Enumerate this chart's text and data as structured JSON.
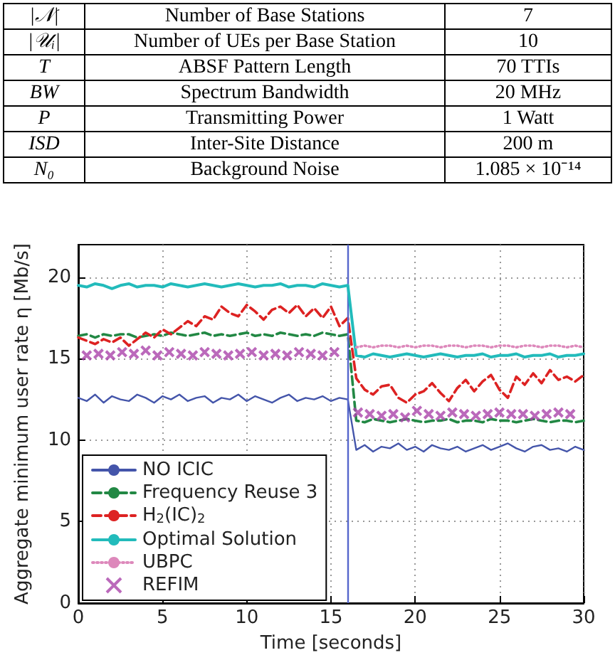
{
  "chart_data": [
    {
      "type": "other",
      "annotations": [
        "|𝒩|",
        "Number of Base Stations",
        "7",
        "|𝒰ᵢ|",
        "Number of UEs per Base Station",
        "10",
        "T",
        "ABSF Pattern Length",
        "70 TTIs",
        "BW",
        "Spectrum Bandwidth",
        "20 MHz",
        "P",
        "Transmitting Power",
        "1 Watt",
        "ISD",
        "Inter-Site Distance",
        "200 m",
        "N₀",
        "Background Noise",
        "1.085 × 10⁻¹⁴"
      ]
    },
    {
      "type": "line",
      "xlabel": "Time [seconds]",
      "ylabel": "Aggregate minimum user rate η [Mb/s]",
      "x": [
        0,
        0.5,
        1,
        1.5,
        2,
        2.5,
        3,
        3.5,
        4,
        4.5,
        5,
        5.5,
        6,
        6.5,
        7,
        7.5,
        8,
        8.5,
        9,
        9.5,
        10,
        10.5,
        11,
        11.5,
        12,
        12.5,
        13,
        13.5,
        14,
        14.5,
        15,
        15.5,
        16,
        16.5,
        17,
        17.5,
        18,
        18.5,
        19,
        19.5,
        20,
        20.5,
        21,
        21.5,
        22,
        22.5,
        23,
        23.5,
        24,
        24.5,
        25,
        25.5,
        26,
        26.5,
        27,
        27.5,
        28,
        28.5,
        29,
        29.5,
        30
      ],
      "series": [
        {
          "name": "NO ICIC",
          "color": "#4455aa",
          "line_style": "solid",
          "values": [
            12.6,
            12.4,
            12.8,
            12.3,
            12.7,
            12.5,
            12.4,
            12.8,
            12.6,
            12.3,
            12.7,
            12.5,
            12.8,
            12.4,
            12.6,
            12.7,
            12.3,
            12.6,
            12.5,
            12.8,
            12.4,
            12.7,
            12.5,
            12.3,
            12.6,
            12.8,
            12.4,
            12.6,
            12.5,
            12.7,
            12.4,
            12.6,
            12.5,
            9.4,
            9.7,
            9.3,
            9.6,
            9.5,
            9.8,
            9.4,
            9.6,
            9.3,
            9.7,
            9.5,
            9.4,
            9.6,
            9.3,
            9.5,
            9.7,
            9.4,
            9.6,
            9.8,
            9.5,
            9.3,
            9.6,
            9.7,
            9.4,
            9.5,
            9.3,
            9.6,
            9.4
          ]
        },
        {
          "name": "Frequency Reuse 3",
          "color": "#228844",
          "line_style": "dashed",
          "values": [
            16.4,
            16.5,
            16.3,
            16.5,
            16.4,
            16.5,
            16.5,
            16.3,
            16.4,
            16.5,
            16.4,
            16.6,
            16.5,
            16.4,
            16.5,
            16.6,
            16.4,
            16.5,
            16.4,
            16.5,
            16.6,
            16.4,
            16.5,
            16.4,
            16.6,
            16.5,
            16.4,
            16.5,
            16.4,
            16.6,
            16.5,
            16.4,
            16.5,
            11.2,
            11.1,
            11.3,
            11.2,
            11.1,
            11.2,
            11.3,
            11.2,
            11.1,
            11.2,
            11.2,
            11.3,
            11.1,
            11.2,
            11.2,
            11.1,
            11.3,
            11.2,
            11.2,
            11.1,
            11.2,
            11.3,
            11.2,
            11.1,
            11.2,
            11.2,
            11.1,
            11.2
          ]
        },
        {
          "name": "H$_{2}$(IC)$_{2}$",
          "color": "#dd2222",
          "line_style": "dashed",
          "values": [
            16.3,
            16.1,
            15.9,
            16.2,
            16.0,
            16.3,
            15.8,
            16.2,
            16.6,
            16.3,
            16.8,
            16.5,
            16.9,
            17.3,
            17.0,
            17.6,
            17.4,
            18.2,
            17.8,
            17.6,
            18.3,
            17.9,
            17.4,
            18.0,
            18.2,
            17.8,
            18.3,
            17.6,
            18.1,
            17.5,
            18.2,
            17.0,
            17.5,
            13.8,
            13.1,
            12.8,
            13.3,
            13.4,
            12.6,
            12.3,
            12.8,
            13.0,
            13.5,
            12.9,
            12.4,
            13.2,
            13.7,
            13.0,
            13.6,
            14.0,
            13.1,
            12.6,
            13.9,
            13.4,
            14.1,
            13.5,
            14.3,
            13.7,
            13.9,
            13.6,
            14.0
          ]
        },
        {
          "name": "Optimal Solution",
          "color": "#22bbbb",
          "line_style": "solid",
          "values": [
            19.5,
            19.4,
            19.6,
            19.5,
            19.3,
            19.5,
            19.6,
            19.4,
            19.5,
            19.5,
            19.4,
            19.6,
            19.5,
            19.4,
            19.5,
            19.6,
            19.5,
            19.4,
            19.5,
            19.6,
            19.5,
            19.4,
            19.5,
            19.5,
            19.6,
            19.4,
            19.5,
            19.5,
            19.4,
            19.6,
            19.5,
            19.4,
            19.5,
            15.2,
            15.1,
            15.3,
            15.2,
            15.1,
            15.2,
            15.3,
            15.2,
            15.1,
            15.2,
            15.3,
            15.2,
            15.1,
            15.2,
            15.2,
            15.3,
            15.1,
            15.2,
            15.2,
            15.3,
            15.1,
            15.2,
            15.2,
            15.3,
            15.1,
            15.2,
            15.2,
            15.3
          ]
        },
        {
          "name": "UBPC",
          "color": "#dd88bb",
          "line_style": "dotted",
          "values": [
            null,
            null,
            null,
            null,
            null,
            null,
            null,
            null,
            null,
            null,
            null,
            null,
            null,
            null,
            null,
            null,
            null,
            null,
            null,
            null,
            null,
            null,
            null,
            null,
            null,
            null,
            null,
            null,
            null,
            null,
            null,
            null,
            null,
            15.7,
            15.8,
            15.7,
            15.8,
            15.8,
            15.7,
            15.8,
            15.7,
            15.8,
            15.8,
            15.7,
            15.8,
            15.8,
            15.7,
            15.8,
            15.8,
            15.7,
            15.8,
            15.8,
            15.7,
            15.8,
            15.8,
            15.7,
            15.8,
            15.8,
            15.7,
            15.8,
            15.7
          ]
        },
        {
          "name": "REFIM",
          "type": "scatter",
          "marker": "cross",
          "color": "#aa44aa",
          "x": [
            0.5,
            1.2,
            1.9,
            2.6,
            3.3,
            4.0,
            4.7,
            5.4,
            6.1,
            6.8,
            7.5,
            8.2,
            8.9,
            9.6,
            10.3,
            11.0,
            11.7,
            12.4,
            13.1,
            13.8,
            14.5,
            15.2,
            16.6,
            17.3,
            18.0,
            18.7,
            19.4,
            20.1,
            20.8,
            21.5,
            22.2,
            22.9,
            23.6,
            24.3,
            25.0,
            25.7,
            26.4,
            27.1,
            27.8,
            28.5,
            29.2
          ],
          "values": [
            15.2,
            15.3,
            15.2,
            15.4,
            15.3,
            15.5,
            15.2,
            15.4,
            15.3,
            15.2,
            15.4,
            15.3,
            15.2,
            15.3,
            15.4,
            15.2,
            15.3,
            15.2,
            15.4,
            15.3,
            15.2,
            15.4,
            11.7,
            11.6,
            11.5,
            11.6,
            11.4,
            11.8,
            11.6,
            11.5,
            11.7,
            11.6,
            11.5,
            11.6,
            11.7,
            11.6,
            11.6,
            11.5,
            11.6,
            11.7,
            11.6
          ]
        }
      ],
      "xlim": [
        0,
        30
      ],
      "xticks": [
        0,
        5,
        10,
        15,
        20,
        25,
        30
      ],
      "ylim": [
        0,
        22
      ],
      "yticks": [
        0,
        5,
        10,
        15,
        20
      ],
      "ref_lines": [
        {
          "axis": "x",
          "value": 16,
          "color": "#5566cc",
          "line_style": "solid"
        }
      ],
      "grid": true,
      "legend": "bottom left",
      "marker": "none"
    }
  ]
}
